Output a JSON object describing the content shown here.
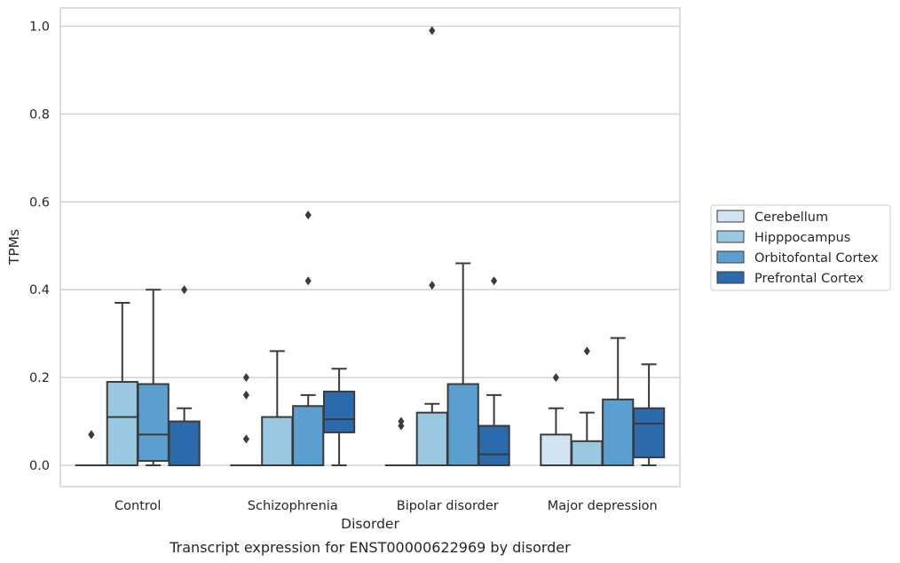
{
  "chart_data": {
    "type": "box",
    "xlabel": "Disorder",
    "ylabel": "TPMs",
    "caption": "Transcript expression for ENST00000622969 by disorder",
    "ylim": [
      -0.05,
      1.04
    ],
    "yticks": [
      0.0,
      0.2,
      0.4,
      0.6,
      0.8,
      1.0
    ],
    "ytick_labels": [
      "0.0",
      "0.2",
      "0.4",
      "0.6",
      "0.8",
      "1.0"
    ],
    "grid": "horizontal",
    "legend_position": "right",
    "categories": [
      "Control",
      "Schizophrenia",
      "Bipolar disorder",
      "Major depression"
    ],
    "series": [
      {
        "name": "Cerebellum",
        "color": "#d2e3f3",
        "boxes": [
          {
            "whislo": 0.0,
            "q1": 0.0,
            "med": 0.0,
            "q3": 0.0,
            "whishi": 0.0,
            "fliers": [
              0.07,
              0.07
            ]
          },
          {
            "whislo": 0.0,
            "q1": 0.0,
            "med": 0.0,
            "q3": 0.0,
            "whishi": 0.0,
            "fliers": [
              0.06,
              0.16,
              0.2
            ]
          },
          {
            "whislo": 0.0,
            "q1": 0.0,
            "med": 0.0,
            "q3": 0.0,
            "whishi": 0.0,
            "fliers": [
              0.09,
              0.1
            ]
          },
          {
            "whislo": 0.0,
            "q1": 0.0,
            "med": 0.0,
            "q3": 0.07,
            "whishi": 0.13,
            "fliers": [
              0.2
            ]
          }
        ]
      },
      {
        "name": "Hipppocampus",
        "color": "#9ac8e0",
        "boxes": [
          {
            "whislo": 0.0,
            "q1": 0.0,
            "med": 0.11,
            "q3": 0.19,
            "whishi": 0.37,
            "fliers": []
          },
          {
            "whislo": 0.0,
            "q1": 0.0,
            "med": 0.0,
            "q3": 0.11,
            "whishi": 0.26,
            "fliers": []
          },
          {
            "whislo": 0.0,
            "q1": 0.0,
            "med": 0.0,
            "q3": 0.12,
            "whishi": 0.14,
            "fliers": [
              0.41,
              0.99
            ]
          },
          {
            "whislo": 0.0,
            "q1": 0.0,
            "med": 0.0,
            "q3": 0.055,
            "whishi": 0.12,
            "fliers": [
              0.26
            ]
          }
        ]
      },
      {
        "name": "Orbitofontal Cortex",
        "color": "#5a9fcf",
        "boxes": [
          {
            "whislo": 0.0,
            "q1": 0.01,
            "med": 0.07,
            "q3": 0.185,
            "whishi": 0.4,
            "fliers": []
          },
          {
            "whislo": 0.0,
            "q1": 0.0,
            "med": 0.0,
            "q3": 0.135,
            "whishi": 0.16,
            "fliers": [
              0.42,
              0.57
            ]
          },
          {
            "whislo": 0.0,
            "q1": 0.0,
            "med": 0.0,
            "q3": 0.185,
            "whishi": 0.46,
            "fliers": []
          },
          {
            "whislo": 0.0,
            "q1": 0.0,
            "med": 0.0,
            "q3": 0.15,
            "whishi": 0.29,
            "fliers": []
          }
        ]
      },
      {
        "name": "Prefrontal Cortex",
        "color": "#2a6aad",
        "boxes": [
          {
            "whislo": 0.0,
            "q1": 0.0,
            "med": 0.0,
            "q3": 0.1,
            "whishi": 0.13,
            "fliers": [
              0.4
            ]
          },
          {
            "whislo": 0.0,
            "q1": 0.075,
            "med": 0.105,
            "q3": 0.168,
            "whishi": 0.22,
            "fliers": []
          },
          {
            "whislo": 0.0,
            "q1": 0.0,
            "med": 0.025,
            "q3": 0.09,
            "whishi": 0.16,
            "fliers": [
              0.42
            ]
          },
          {
            "whislo": 0.0,
            "q1": 0.018,
            "med": 0.095,
            "q3": 0.13,
            "whishi": 0.23,
            "fliers": []
          }
        ]
      }
    ]
  }
}
